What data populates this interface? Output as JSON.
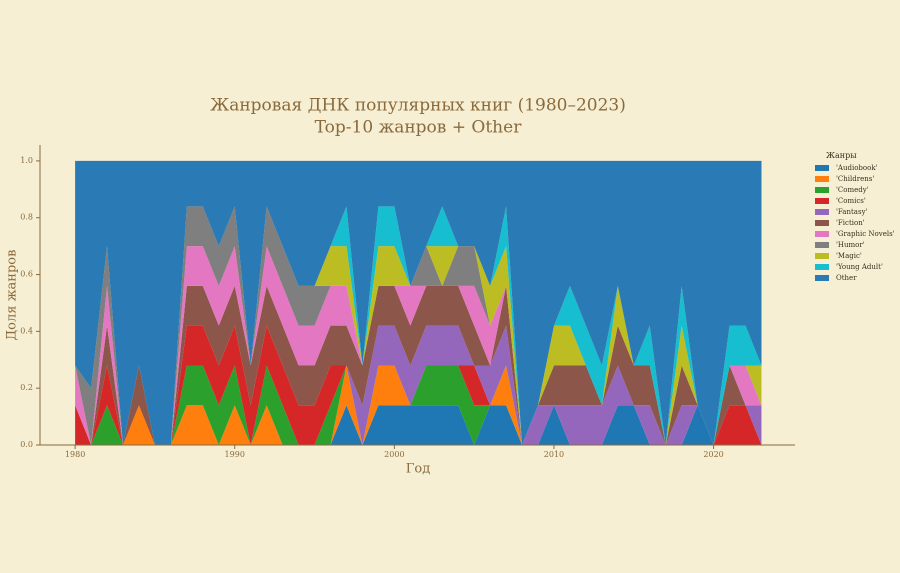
{
  "chart_data": {
    "type": "stacked_area",
    "title": "Жанровая ДНК популярных книг (1980–2023)",
    "subtitle": "Top-10 жанров + Other",
    "x_label": "Год",
    "y_label": "Доля жанров",
    "legend_title": "Жанры",
    "legend_position": "right",
    "x": [
      1980,
      1981,
      1982,
      1983,
      1984,
      1985,
      1986,
      1987,
      1988,
      1989,
      1990,
      1991,
      1992,
      1993,
      1994,
      1995,
      1996,
      1997,
      1998,
      1999,
      2000,
      2001,
      2002,
      2003,
      2004,
      2005,
      2006,
      2007,
      2008,
      2009,
      2010,
      2011,
      2012,
      2013,
      2014,
      2015,
      2016,
      2017,
      2018,
      2019,
      2020,
      2021,
      2022,
      2023
    ],
    "xlim": [
      1977.8,
      2025.1
    ],
    "xticks": [
      1980,
      1990,
      2000,
      2010,
      2020
    ],
    "ylim": [
      0,
      1.056
    ],
    "yticks": [
      {
        "value": 0,
        "label": "0.0"
      },
      0.2,
      0.4,
      0.6,
      0.8,
      {
        "value": 1,
        "label": "1.0"
      }
    ],
    "series": [
      {
        "name": "'Audiobook'",
        "color": "#1f77b4",
        "values": [
          0,
          0,
          0,
          0,
          0,
          0,
          0,
          0,
          0,
          0,
          0,
          0,
          0,
          0,
          0,
          0,
          0,
          0.14,
          0,
          0.14,
          0.14,
          0.14,
          0.14,
          0.14,
          0.14,
          0,
          0.14,
          0.14,
          0,
          0,
          0.14,
          0,
          0,
          0,
          0.14,
          0.14,
          0,
          0,
          0,
          0.14,
          0,
          0,
          0,
          0
        ]
      },
      {
        "name": "'Childrens'",
        "color": "#ff7f0e",
        "values": [
          0,
          0,
          0,
          0,
          0.14,
          0,
          0,
          0.14,
          0.14,
          0,
          0.14,
          0,
          0.14,
          0,
          0,
          0,
          0,
          0.14,
          0,
          0.14,
          0.14,
          0,
          0,
          0,
          0,
          0,
          0,
          0.14,
          0,
          0,
          0,
          0,
          0,
          0,
          0,
          0,
          0,
          0,
          0,
          0,
          0,
          0,
          0,
          0
        ]
      },
      {
        "name": "'Comedy'",
        "color": "#2ca02c",
        "values": [
          0,
          0,
          0.14,
          0,
          0,
          0,
          0,
          0.14,
          0.14,
          0.14,
          0.14,
          0,
          0.14,
          0.14,
          0,
          0,
          0.14,
          0,
          0,
          0,
          0,
          0,
          0.14,
          0.14,
          0.14,
          0.14,
          0,
          0,
          0,
          0,
          0,
          0,
          0,
          0,
          0,
          0,
          0,
          0,
          0,
          0,
          0,
          0,
          0,
          0
        ]
      },
      {
        "name": "'Comics'",
        "color": "#d62728",
        "values": [
          0.14,
          0,
          0.14,
          0,
          0,
          0,
          0,
          0.14,
          0.14,
          0.14,
          0.14,
          0.14,
          0.14,
          0.14,
          0.14,
          0.14,
          0.14,
          0,
          0,
          0,
          0,
          0,
          0,
          0,
          0,
          0.14,
          0,
          0,
          0,
          0,
          0,
          0,
          0,
          0,
          0,
          0,
          0,
          0,
          0,
          0,
          0,
          0.14,
          0.14,
          0
        ]
      },
      {
        "name": "'Fantasy'",
        "color": "#9467bd",
        "values": [
          0,
          0,
          0,
          0,
          0,
          0,
          0,
          0,
          0,
          0,
          0,
          0,
          0,
          0,
          0,
          0,
          0,
          0,
          0.14,
          0.14,
          0.14,
          0.14,
          0.14,
          0.14,
          0.14,
          0,
          0.14,
          0.14,
          0,
          0.14,
          0,
          0.14,
          0.14,
          0.14,
          0.14,
          0,
          0.14,
          0,
          0.14,
          0,
          0,
          0,
          0,
          0.14
        ]
      },
      {
        "name": "'Fiction'",
        "color": "#8c564b",
        "values": [
          0,
          0,
          0.14,
          0,
          0.14,
          0,
          0,
          0.14,
          0.14,
          0.14,
          0.14,
          0.14,
          0.14,
          0.14,
          0.14,
          0.14,
          0.14,
          0.14,
          0.14,
          0.14,
          0.14,
          0.14,
          0.14,
          0.14,
          0.14,
          0.14,
          0,
          0.14,
          0,
          0,
          0.14,
          0.14,
          0.14,
          0,
          0.14,
          0.14,
          0.14,
          0,
          0.14,
          0,
          0,
          0.14,
          0,
          0
        ]
      },
      {
        "name": "'Graphic Novels'",
        "color": "#e377c2",
        "values": [
          0.14,
          0,
          0.14,
          0,
          0,
          0,
          0,
          0.14,
          0.14,
          0.14,
          0.14,
          0,
          0.14,
          0.14,
          0.14,
          0.14,
          0.14,
          0.14,
          0,
          0,
          0,
          0.14,
          0,
          0,
          0,
          0.14,
          0.14,
          0,
          0,
          0,
          0,
          0,
          0,
          0,
          0,
          0,
          0,
          0,
          0,
          0,
          0,
          0,
          0.14,
          0
        ]
      },
      {
        "name": "'Humor'",
        "color": "#7f7f7f",
        "values": [
          0,
          0.2,
          0.14,
          0,
          0,
          0,
          0,
          0.14,
          0.14,
          0.14,
          0.14,
          0,
          0.14,
          0.14,
          0.14,
          0.14,
          0,
          0,
          0,
          0,
          0,
          0,
          0.14,
          0,
          0.14,
          0.14,
          0,
          0,
          0,
          0,
          0,
          0,
          0,
          0,
          0,
          0,
          0,
          0,
          0,
          0,
          0,
          0,
          0,
          0
        ]
      },
      {
        "name": "'Magic'",
        "color": "#bcbd22",
        "values": [
          0,
          0,
          0,
          0,
          0,
          0,
          0,
          0,
          0,
          0,
          0,
          0,
          0,
          0,
          0,
          0,
          0.14,
          0.14,
          0,
          0.14,
          0.14,
          0,
          0,
          0.14,
          0,
          0,
          0.14,
          0.14,
          0,
          0,
          0.14,
          0.14,
          0,
          0,
          0.14,
          0,
          0,
          0,
          0.14,
          0,
          0,
          0,
          0,
          0.14
        ]
      },
      {
        "name": "'Young Adult'",
        "color": "#17becf",
        "values": [
          0,
          0,
          0,
          0,
          0,
          0,
          0,
          0,
          0,
          0,
          0,
          0,
          0,
          0,
          0,
          0,
          0,
          0.14,
          0,
          0.14,
          0.14,
          0,
          0,
          0.14,
          0,
          0,
          0,
          0.14,
          0,
          0,
          0,
          0.14,
          0.14,
          0.14,
          0,
          0,
          0.14,
          0,
          0.14,
          0,
          0,
          0.14,
          0.14,
          0
        ]
      },
      {
        "name": "Other",
        "color": "#2a7ab5",
        "values": [
          0.72,
          0.8,
          0.3,
          1,
          0.72,
          1,
          1,
          0.16,
          0.16,
          0.3,
          0.16,
          0.72,
          0.16,
          0.3,
          0.44,
          0.44,
          0.3,
          0.16,
          0.72,
          0.16,
          0.16,
          0.44,
          0.3,
          0.16,
          0.3,
          0.3,
          0.44,
          0.16,
          1,
          0.86,
          0.58,
          0.44,
          0.58,
          0.72,
          0.44,
          0.72,
          0.58,
          1,
          0.44,
          0.86,
          1,
          0.58,
          0.58,
          0.72
        ]
      }
    ]
  }
}
